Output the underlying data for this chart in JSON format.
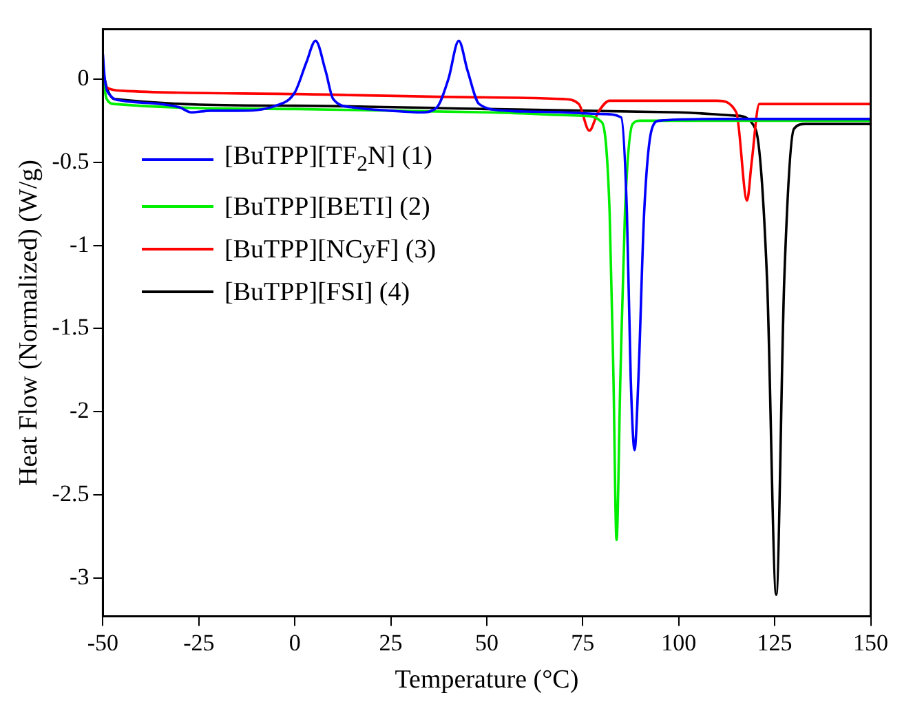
{
  "chart_data": {
    "type": "line",
    "xlabel": "Temperature (°C)",
    "ylabel": "Heat Flow (Normalized) (W/g)",
    "xlim": [
      -50,
      150
    ],
    "xticks": [
      -50,
      -25,
      0,
      25,
      50,
      75,
      100,
      125,
      150
    ],
    "ylim": [
      -3.23,
      0.3
    ],
    "yticks": [
      -3,
      -2.5,
      -2,
      -1.5,
      -1,
      -0.5,
      0
    ],
    "grid": false,
    "legend": "left",
    "marker": "none",
    "line_style": "solid",
    "series": [
      {
        "name": "[BuTPP][TF$_{2}$N] (1)",
        "color": "#0000ff",
        "x": [
          -50,
          -49.5,
          -48,
          -45,
          -35,
          -30,
          -27,
          -22,
          -15,
          -5,
          0,
          3,
          5.4,
          8,
          10,
          15,
          25,
          33,
          37,
          40,
          42.7,
          45,
          48,
          55,
          70,
          80,
          85,
          86.5,
          87.5,
          88.5,
          89.5,
          91,
          93,
          95,
          110,
          130,
          150
        ],
        "values": [
          0.15,
          0,
          -0.1,
          -0.13,
          -0.15,
          -0.17,
          -0.2,
          -0.19,
          -0.19,
          -0.16,
          -0.08,
          0.1,
          0.23,
          0.05,
          -0.12,
          -0.17,
          -0.19,
          -0.2,
          -0.17,
          0.0,
          0.23,
          0.05,
          -0.15,
          -0.19,
          -0.2,
          -0.21,
          -0.23,
          -0.8,
          -1.8,
          -2.23,
          -1.8,
          -0.8,
          -0.3,
          -0.25,
          -0.24,
          -0.24,
          -0.24
        ]
      },
      {
        "name": "[BuTPP][BETI] (2)",
        "color": "#00ee00",
        "x": [
          -50,
          -49,
          -47,
          0,
          50,
          75,
          80,
          82,
          83,
          83.8,
          84.8,
          86,
          88,
          90,
          150
        ],
        "values": [
          0,
          -0.12,
          -0.15,
          -0.18,
          -0.2,
          -0.22,
          -0.26,
          -0.8,
          -1.8,
          -2.77,
          -1.8,
          -0.8,
          -0.27,
          -0.25,
          -0.25
        ]
      },
      {
        "name": "[BuTPP][NCyF] (3)",
        "color": "#ff0000",
        "x": [
          -50,
          -49,
          -45,
          0,
          50,
          70,
          74,
          76.7,
          79,
          82,
          110,
          115,
          117.8,
          119,
          121,
          150
        ],
        "values": [
          0,
          -0.05,
          -0.07,
          -0.09,
          -0.11,
          -0.12,
          -0.15,
          -0.31,
          -0.2,
          -0.13,
          -0.13,
          -0.2,
          -0.73,
          -0.5,
          -0.15,
          -0.15
        ]
      },
      {
        "name": "[BuTPP][FSI] (4)",
        "color": "#000000",
        "x": [
          -50,
          -49,
          -47,
          0,
          50,
          100,
          115,
          120,
          123,
          125.4,
          127.5,
          130,
          133,
          150
        ],
        "values": [
          0.05,
          -0.05,
          -0.12,
          -0.16,
          -0.18,
          -0.2,
          -0.22,
          -0.3,
          -1.2,
          -3.1,
          -1.2,
          -0.3,
          -0.27,
          -0.27
        ]
      }
    ]
  }
}
